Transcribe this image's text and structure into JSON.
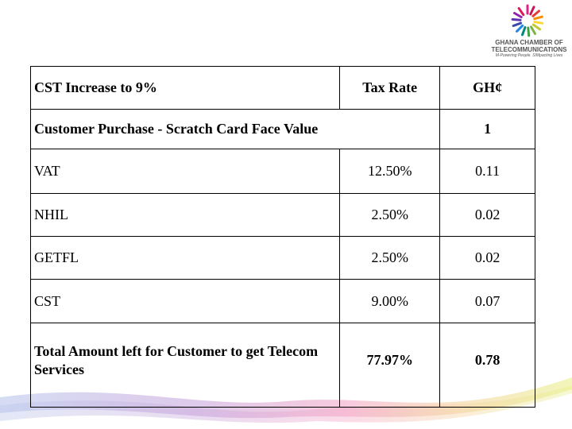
{
  "logo": {
    "line1": "GHANA CHAMBER OF",
    "line2": "TELECOMMUNICATIONS",
    "tagline": "M-Powering People. SIMpacting Lives"
  },
  "table": {
    "header": {
      "label": "CST Increase to 9%",
      "rate": "Tax Rate",
      "amount": "GH¢"
    },
    "purchase": {
      "label": "Customer Purchase - Scratch Card Face Value",
      "amount": "1"
    },
    "rows": [
      {
        "label": "VAT",
        "rate": "12.50%",
        "amount": "0.11"
      },
      {
        "label": "NHIL",
        "rate": "2.50%",
        "amount": "0.02"
      },
      {
        "label": "GETFL",
        "rate": "2.50%",
        "amount": "0.02"
      },
      {
        "label": "CST",
        "rate": "9.00%",
        "amount": "0.07"
      }
    ],
    "total": {
      "label": "Total Amount left for Customer to get Telecom Services",
      "rate": "77.97%",
      "amount": "0.78"
    }
  }
}
